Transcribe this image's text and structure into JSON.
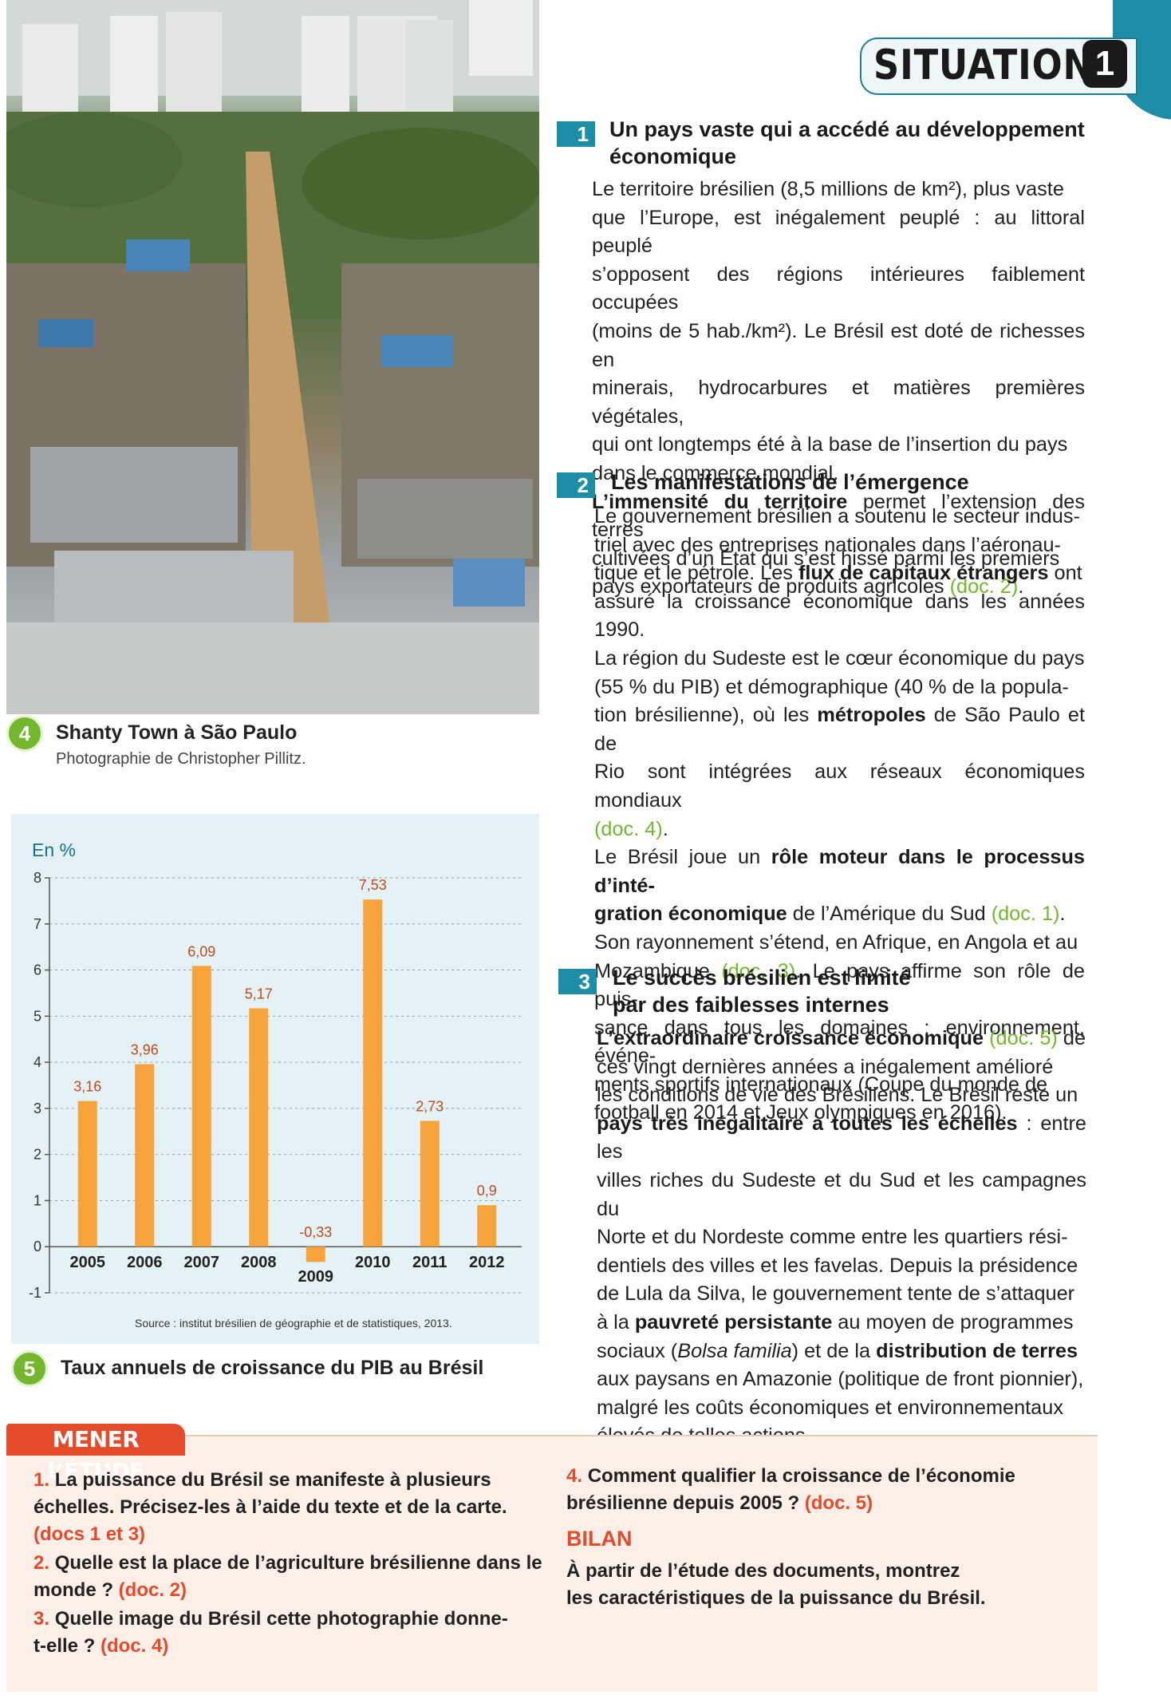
{
  "situation": {
    "label": "SITUATION",
    "number": "1"
  },
  "photo_doc": {
    "number": "4",
    "title": "Shanty Town à São Paulo",
    "credit": "Photographie de Christopher Pillitz."
  },
  "chart_doc": {
    "number": "5",
    "title": "Taux annuels de croissance du PIB au Brésil",
    "source": "Source : institut brésilien de géographie et de statistiques, 2013."
  },
  "chart_data": {
    "type": "bar",
    "ylabel": "En %",
    "categories": [
      "2005",
      "2006",
      "2007",
      "2008",
      "2009",
      "2010",
      "2011",
      "2012"
    ],
    "values": [
      3.16,
      3.96,
      6.09,
      5.17,
      -0.33,
      7.53,
      2.73,
      0.9
    ],
    "value_labels": [
      "3,16",
      "3,96",
      "6,09",
      "5,17",
      "-0,33",
      "7,53",
      "2,73",
      "0,9"
    ],
    "yticks": [
      "-1",
      "0",
      "1",
      "2",
      "3",
      "4",
      "5",
      "6",
      "7",
      "8"
    ],
    "ylim": [
      -1,
      8
    ],
    "grid": true,
    "bar_color": "#f5a33a"
  },
  "sections": [
    {
      "number": "1",
      "title_lines": [
        "Un pays vaste qui a accédé au développement",
        "économique"
      ],
      "lines": [
        "Le territoire brésilien (8,5 millions de km²), plus vaste",
        "que l’Europe, est inégalement peuplé : au littoral peuplé",
        "s’opposent des régions intérieures faiblement occupées",
        "(moins de 5 hab./km²). Le Brésil est doté de richesses en",
        "minerais, hydrocarbures et matières premières végétales,",
        "qui ont longtemps été à la base de l’insertion du pays",
        "dans le commerce mondial."
      ],
      "para2": [
        {
          "b": "L’immensité du territoire",
          "t": " permet l’extension des terres"
        },
        {
          "t": "cultivées d’un État qui s’est hissé parmi les premiers"
        },
        {
          "t": "pays exportateurs de produits agricoles ",
          "r": "(doc. 2)",
          "e": "."
        }
      ]
    },
    {
      "number": "2",
      "title_lines": [
        "Les manifestations de l’émergence"
      ],
      "lines_html": [
        {
          "t": "Le gouvernement brésilien a soutenu le secteur indus-"
        },
        {
          "t": "triel avec des entreprises nationales dans l’aéronau-"
        },
        {
          "t": "tique et le pétrole. Les ",
          "b": "flux de capitaux étrangers",
          "e": " ont"
        },
        {
          "t": "assuré la croissance économique dans les années 1990."
        },
        {
          "t": "La région du Sudeste est le cœur économique du pays"
        },
        {
          "t": "(55 % du PIB) et démographique (40 % de la popula-"
        },
        {
          "t": "tion brésilienne), où les ",
          "b": "métropoles",
          "e": " de São Paulo et de"
        },
        {
          "t": "Rio sont intégrées aux réseaux économiques mondiaux"
        },
        {
          "r": "(doc. 4)",
          "e": "."
        },
        {
          "t": "Le Brésil joue un ",
          "b": "rôle moteur dans le processus d’inté-"
        },
        {
          "b": "gration économique",
          "t2": " de l’Amérique du Sud ",
          "r": "(doc. 1)",
          "e": "."
        },
        {
          "t": "Son rayonnement s’étend, en Afrique, en Angola et au"
        },
        {
          "t": "Mozambique ",
          "r": "(doc. 3)",
          "e": ". Le pays affirme son rôle de puis-"
        },
        {
          "t": "sance dans tous les domaines : environnement, événe-"
        },
        {
          "t": "ments sportifs internationaux (Coupe du monde de"
        },
        {
          "t": "football en 2014 et Jeux olympiques en 2016)."
        }
      ]
    },
    {
      "number": "3",
      "title_lines": [
        "Le succès brésilien est limité",
        "par des faiblesses internes"
      ],
      "lines_html": [
        {
          "b": "L’extraordinaire croissance économique",
          "t2": " ",
          "r": "(doc. 5)",
          "e": " de"
        },
        {
          "t": "ces vingt dernières années a inégalement amélioré"
        },
        {
          "t": "les conditions de vie des Brésiliens. Le Brésil reste un"
        },
        {
          "b": "pays très inégalitaire à toutes les échelles",
          "e": " : entre les"
        },
        {
          "t": "villes riches du Sudeste et du Sud et les campagnes du"
        },
        {
          "t": "Norte et du Nordeste comme entre les quartiers rési-"
        },
        {
          "t": "dentiels des villes et les favelas. Depuis la présidence"
        },
        {
          "t": "de Lula da Silva, le gouvernement tente de s’attaquer"
        },
        {
          "t": "à la ",
          "b": "pauvreté persistante",
          "e": " au moyen de programmes"
        },
        {
          "t": "sociaux (",
          "i": "Bolsa familia",
          "e": ") et de la ",
          "b2": "distribution de terres"
        },
        {
          "t": "aux paysans en Amazonie (politique de front pionnier),"
        },
        {
          "t": "malgré les coûts économiques et environnementaux"
        },
        {
          "t": "élevés de telles actions."
        }
      ]
    }
  ],
  "etude": {
    "tab_label": "MENER L’ÉTUDE",
    "questions": [
      {
        "num": "1.",
        "lines": [
          "La puissance du Brésil se manifeste à plusieurs",
          "échelles. Précisez-les à l’aide du texte et de la carte."
        ],
        "ref": "(docs 1 et 3)"
      },
      {
        "num": "2.",
        "lines": [
          "Quelle est la place de l’agriculture brésilienne dans le",
          "monde ? "
        ],
        "ref": "(doc. 2)"
      },
      {
        "num": "3.",
        "lines": [
          "Quelle image du Brésil cette photographie donne-",
          "t-elle ? "
        ],
        "ref": "(doc. 4)"
      },
      {
        "num": "4.",
        "lines": [
          "Comment qualifier la croissance de l’économie",
          "brésilienne depuis 2005 ? "
        ],
        "ref": "(doc. 5)"
      }
    ],
    "bilan_title": "BILAN",
    "bilan_lines": [
      "À partir de l’étude des documents, montrez",
      "les caractéristiques de la puissance du Brésil."
    ]
  }
}
